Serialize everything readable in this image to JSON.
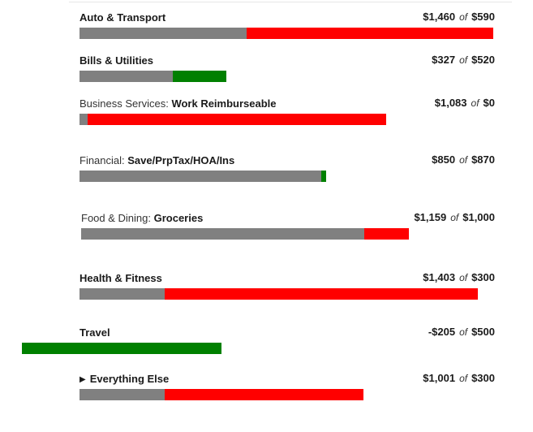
{
  "rows": [
    {
      "category": "",
      "subcategory": "",
      "name": "Auto & Transport",
      "spent": "$1,460",
      "of": "of",
      "budget": "$590",
      "spent_value": 1460,
      "budget_value": 590,
      "status_color": "#ff0000"
    },
    {
      "category": "",
      "subcategory": "",
      "name": "Bills & Utilities",
      "spent": "$327",
      "of": "of",
      "budget": "$520",
      "spent_value": 327,
      "budget_value": 520,
      "status_color": "#008000"
    },
    {
      "category": "Business Services: ",
      "subcategory": "Work Reimburseable",
      "name": "",
      "spent": "$1,083",
      "of": "of",
      "budget": "$0",
      "spent_value": 1083,
      "budget_value": 0,
      "status_color": "#ff0000"
    },
    {
      "category": "Financial: ",
      "subcategory": "Save/PrpTax/HOA/Ins",
      "name": "",
      "spent": "$850",
      "of": "of",
      "budget": "$870",
      "spent_value": 850,
      "budget_value": 870,
      "status_color": "#008000"
    },
    {
      "category": "Food & Dining: ",
      "subcategory": "Groceries",
      "name": "",
      "spent": "$1,159",
      "of": "of",
      "budget": "$1,000",
      "spent_value": 1159,
      "budget_value": 1000,
      "status_color": "#ff0000"
    },
    {
      "category": "",
      "subcategory": "",
      "name": "Health & Fitness",
      "spent": "$1,403",
      "of": "of",
      "budget": "$300",
      "spent_value": 1403,
      "budget_value": 300,
      "status_color": "#ff0000"
    },
    {
      "category": "",
      "subcategory": "",
      "name": "Travel",
      "spent": "-$205",
      "of": "of",
      "budget": "$500",
      "spent_value": -205,
      "budget_value": 500,
      "status_color": "#008000"
    },
    {
      "category": "",
      "subcategory": "",
      "name": "Everything Else",
      "expand_icon": "triangle-right-icon",
      "spent": "$1,001",
      "of": "of",
      "budget": "$300",
      "spent_value": 1001,
      "budget_value": 300,
      "status_color": "#ff0000"
    }
  ],
  "colors": {
    "spent_base": "#808080",
    "over": "#ff0000",
    "under": "#008000"
  }
}
